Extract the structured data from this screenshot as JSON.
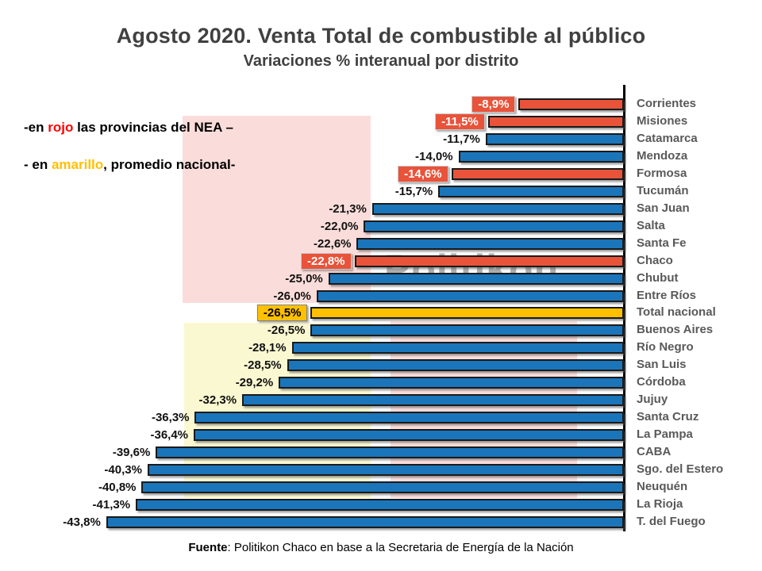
{
  "title": "Agosto 2020. Venta Total de combustible al público",
  "subtitle": "Variaciones % interanual por distrito",
  "annotations": {
    "nea": {
      "prefix": "-en ",
      "highlight": "rojo",
      "suffix": " las provincias del NEA –"
    },
    "nacional": {
      "prefix": "- en ",
      "highlight": "amarillo",
      "suffix": ", promedio nacional-"
    }
  },
  "watermark": "Politikon",
  "footer": {
    "bold": "Fuente",
    "rest": ": Politikon Chaco en base a la Secretaria de Energía de la Nación"
  },
  "colors": {
    "blue": "#1B75BB",
    "red": "#E8533A",
    "amber": "#FFC000",
    "bar_border": "#1A1A1A",
    "category_text": "#595959",
    "title_text": "#404040",
    "pink_bg": "#FADDDA",
    "yellow_bg": "#FAF8D1",
    "nea_text": "#FF0000",
    "nacional_text": "#FFC000"
  },
  "chart_data": {
    "type": "bar",
    "orientation": "horizontal",
    "title": "Agosto 2020. Venta Total de combustible al público",
    "subtitle": "Variaciones % interanual por distrito",
    "unit": "%",
    "xlim": [
      -45,
      0
    ],
    "grid": false,
    "legend_notes": [
      "en rojo las provincias del NEA",
      "en amarillo promedio nacional"
    ],
    "categories": [
      "Corrientes",
      "Misiones",
      "Catamarca",
      "Mendoza",
      "Formosa",
      "Tucumán",
      "San Juan",
      "Salta",
      "Santa Fe",
      "Chaco",
      "Chubut",
      "Entre Ríos",
      "Total nacional",
      "Buenos Aires",
      "Río Negro",
      "San Luis",
      "Córdoba",
      "Jujuy",
      "Santa Cruz",
      "La Pampa",
      "CABA",
      "Sgo. del Estero",
      "Neuquén",
      "La Rioja",
      "T. del Fuego"
    ],
    "values": [
      -8.9,
      -11.5,
      -11.7,
      -14.0,
      -14.6,
      -15.7,
      -21.3,
      -22.0,
      -22.6,
      -22.8,
      -25.0,
      -26.0,
      -26.5,
      -26.5,
      -28.1,
      -28.5,
      -29.2,
      -32.3,
      -36.3,
      -36.4,
      -39.6,
      -40.3,
      -40.8,
      -41.3,
      -43.8
    ],
    "value_labels": [
      "-8,9%",
      "-11,5%",
      "-11,7%",
      "-14,0%",
      "-14,6%",
      "-15,7%",
      "-21,3%",
      "-22,0%",
      "-22,6%",
      "-22,8%",
      "-25,0%",
      "-26,0%",
      "-26,5%",
      "-26,5%",
      "-28,1%",
      "-28,5%",
      "-29,2%",
      "-32,3%",
      "-36,3%",
      "-36,4%",
      "-39,6%",
      "-40,3%",
      "-40,8%",
      "-41,3%",
      "-43,8%"
    ],
    "bar_colors": [
      "red",
      "red",
      "blue",
      "blue",
      "red",
      "blue",
      "blue",
      "blue",
      "blue",
      "red",
      "blue",
      "blue",
      "amber",
      "blue",
      "blue",
      "blue",
      "blue",
      "blue",
      "blue",
      "blue",
      "blue",
      "blue",
      "blue",
      "blue",
      "blue"
    ],
    "label_box": [
      "red",
      "red",
      "plain",
      "plain",
      "red",
      "plain",
      "plain",
      "plain",
      "plain",
      "red",
      "plain",
      "plain",
      "amber",
      "plain",
      "plain",
      "plain",
      "plain",
      "plain",
      "plain",
      "plain",
      "plain",
      "plain",
      "plain",
      "plain",
      "plain"
    ]
  }
}
